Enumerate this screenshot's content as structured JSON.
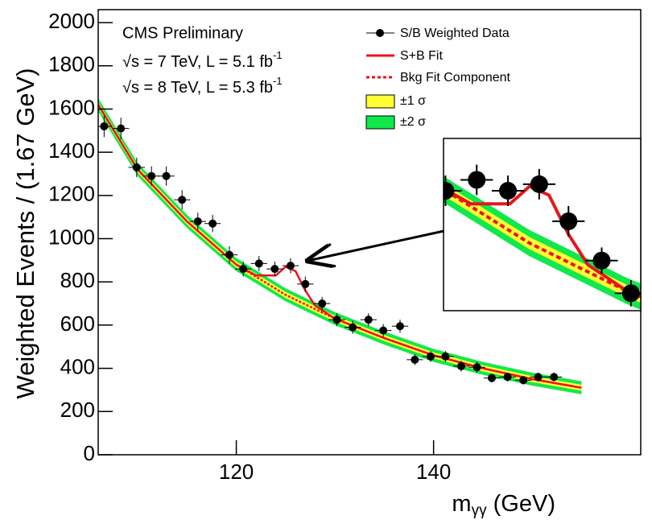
{
  "chart_data": {
    "type": "scatter",
    "title": "CMS Preliminary",
    "annotations": [
      {
        "text": "√s = 7 TeV, L = 5.1 fb",
        "sup": "-1"
      },
      {
        "text": "√s = 8 TeV, L = 5.3 fb",
        "sup": "-1"
      }
    ],
    "y_label": "Weighted Events / (1.67 GeV)",
    "x_label": {
      "base": "m",
      "sub": "γγ",
      "unit": " (GeV)"
    },
    "xlim": [
      106,
      161
    ],
    "ylim": [
      0,
      2060
    ],
    "xticks": [
      120,
      140
    ],
    "yticks": [
      0,
      200,
      400,
      600,
      800,
      1000,
      1200,
      1400,
      1600,
      1800,
      2000
    ],
    "x_error": 0.83,
    "series": [
      {
        "name": "S/B Weighted Data",
        "color": "#000000",
        "x": [
          106.6,
          108.3,
          109.9,
          111.4,
          112.9,
          114.5,
          116.1,
          117.6,
          119.3,
          120.7,
          122.3,
          123.9,
          125.5,
          127.0,
          128.7,
          130.2,
          131.8,
          133.4,
          134.9,
          136.6,
          138.1,
          139.7,
          141.2,
          142.8,
          144.4,
          145.9,
          147.5,
          149.1,
          150.6,
          152.2
        ],
        "values": [
          1520,
          1510,
          1330,
          1290,
          1290,
          1180,
          1080,
          1070,
          925,
          860,
          885,
          860,
          875,
          790,
          700,
          625,
          590,
          625,
          575,
          595,
          440,
          455,
          455,
          410,
          405,
          355,
          360,
          345,
          360,
          360
        ],
        "errors": [
          50,
          50,
          45,
          45,
          45,
          45,
          40,
          40,
          40,
          35,
          35,
          35,
          35,
          35,
          30,
          30,
          30,
          30,
          30,
          30,
          25,
          25,
          25,
          25,
          25,
          20,
          20,
          20,
          20,
          20
        ]
      },
      {
        "name": "S+B Fit",
        "color": "#e8141c",
        "x": [
          106,
          110,
          115,
          120,
          122,
          124,
          125,
          126,
          127,
          128,
          130,
          135,
          140,
          145,
          150,
          155
        ],
        "values": [
          1620,
          1320,
          1080,
          880,
          830,
          830,
          870,
          850,
          760,
          690,
          630,
          540,
          460,
          400,
          350,
          310
        ]
      },
      {
        "name": "Bkg Fit Component",
        "color": "#e8141c",
        "x": [
          106,
          110,
          115,
          120,
          125,
          130,
          135,
          140,
          145,
          150,
          155
        ],
        "values": [
          1620,
          1320,
          1080,
          880,
          740,
          630,
          540,
          460,
          400,
          350,
          310
        ]
      }
    ],
    "bands": [
      {
        "name": "±1 σ",
        "color": "#ffff33",
        "half_width": 14
      },
      {
        "name": "±2 σ",
        "color": "#11e84a",
        "half_width": 30
      }
    ],
    "inset": {
      "xlim": [
        120.6,
        130.7
      ],
      "ylim": [
        585,
        980
      ]
    }
  }
}
